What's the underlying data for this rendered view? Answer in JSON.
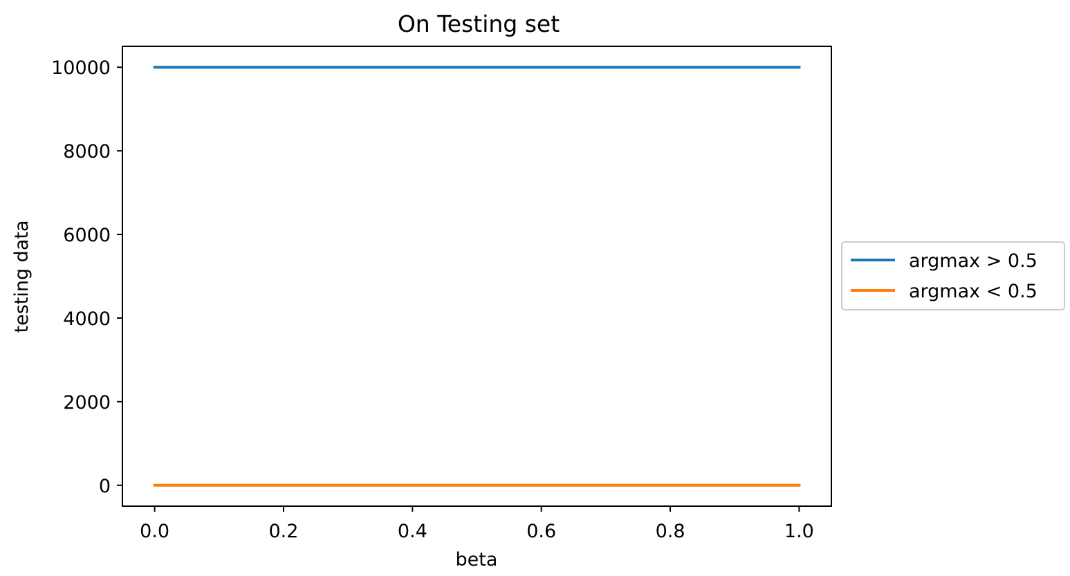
{
  "chart_data": {
    "type": "line",
    "title": "On Testing set",
    "xlabel": "beta",
    "ylabel": "testing data",
    "xlim": [
      -0.05,
      1.05
    ],
    "ylim": [
      -500,
      10500
    ],
    "x_ticks": [
      0.0,
      0.2,
      0.4,
      0.6,
      0.8,
      1.0
    ],
    "x_tick_labels": [
      "0.0",
      "0.2",
      "0.4",
      "0.6",
      "0.8",
      "1.0"
    ],
    "y_ticks": [
      0,
      2000,
      4000,
      6000,
      8000,
      10000
    ],
    "y_tick_labels": [
      "0",
      "2000",
      "4000",
      "6000",
      "8000",
      "10000"
    ],
    "grid": false,
    "legend_placement": "outside-right",
    "series": [
      {
        "name": "argmax > 0.5",
        "color": "#1f77b4",
        "x": [
          0.0,
          1.0
        ],
        "y": [
          10000,
          10000
        ]
      },
      {
        "name": "argmax < 0.5",
        "color": "#ff7f0e",
        "x": [
          0.0,
          1.0
        ],
        "y": [
          0,
          0
        ]
      }
    ]
  }
}
